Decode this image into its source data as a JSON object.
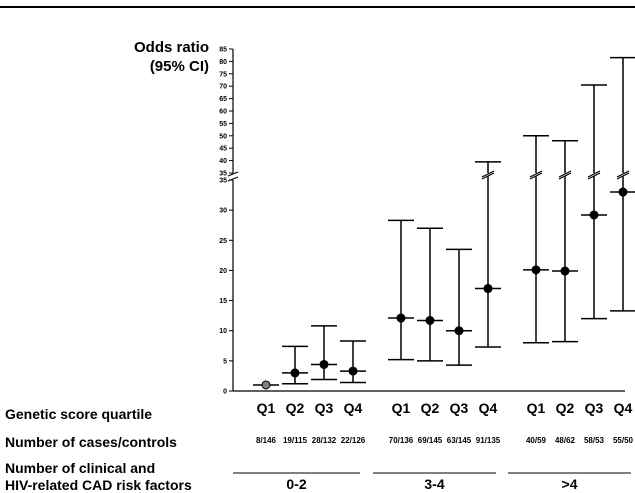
{
  "chart_data": {
    "type": "scatter",
    "ylabel": [
      "Odds ratio",
      "(95% CI)"
    ],
    "ylim_lower": [
      0,
      35
    ],
    "ylim_upper": [
      35,
      85
    ],
    "yticks_lower": [
      0,
      5,
      10,
      15,
      20,
      25,
      30,
      35
    ],
    "yticks_upper": [
      35,
      40,
      45,
      50,
      55,
      60,
      65,
      70,
      75,
      80,
      85
    ],
    "row_labels": {
      "quartile": "Genetic score quartile",
      "cases": "Number of cases/controls",
      "risk_line1": "Number of clinical and",
      "risk_line2": "HIV-related CAD risk factors"
    },
    "groups": [
      {
        "label": "0-2",
        "points": [
          {
            "q": "Q1",
            "or": 1.0,
            "lo": null,
            "hi": null,
            "cases": "8/146",
            "reference": true
          },
          {
            "q": "Q2",
            "or": 3.0,
            "lo": 1.2,
            "hi": 7.4,
            "cases": "19/115"
          },
          {
            "q": "Q3",
            "or": 4.4,
            "lo": 1.9,
            "hi": 10.8,
            "cases": "28/132"
          },
          {
            "q": "Q4",
            "or": 3.3,
            "lo": 1.4,
            "hi": 8.3,
            "cases": "22/126"
          }
        ]
      },
      {
        "label": "3-4",
        "points": [
          {
            "q": "Q1",
            "or": 12.1,
            "lo": 5.2,
            "hi": 28.3,
            "cases": "70/136"
          },
          {
            "q": "Q2",
            "or": 11.7,
            "lo": 5.0,
            "hi": 27.0,
            "cases": "69/145"
          },
          {
            "q": "Q3",
            "or": 10.0,
            "lo": 4.3,
            "hi": 23.5,
            "cases": "63/145"
          },
          {
            "q": "Q4",
            "or": 17.0,
            "lo": 7.3,
            "hi": 39.5,
            "cases": "91/135"
          }
        ]
      },
      {
        "label": ">4",
        "points": [
          {
            "q": "Q1",
            "or": 20.1,
            "lo": 8.0,
            "hi": 50.0,
            "cases": "40/59"
          },
          {
            "q": "Q2",
            "or": 19.9,
            "lo": 8.2,
            "hi": 48.0,
            "cases": "48/62"
          },
          {
            "q": "Q3",
            "or": 29.2,
            "lo": 12.0,
            "hi": 70.5,
            "cases": "58/53"
          },
          {
            "q": "Q4",
            "or": 33.0,
            "lo": 13.3,
            "hi": 81.5,
            "cases": "55/50"
          }
        ]
      }
    ]
  }
}
